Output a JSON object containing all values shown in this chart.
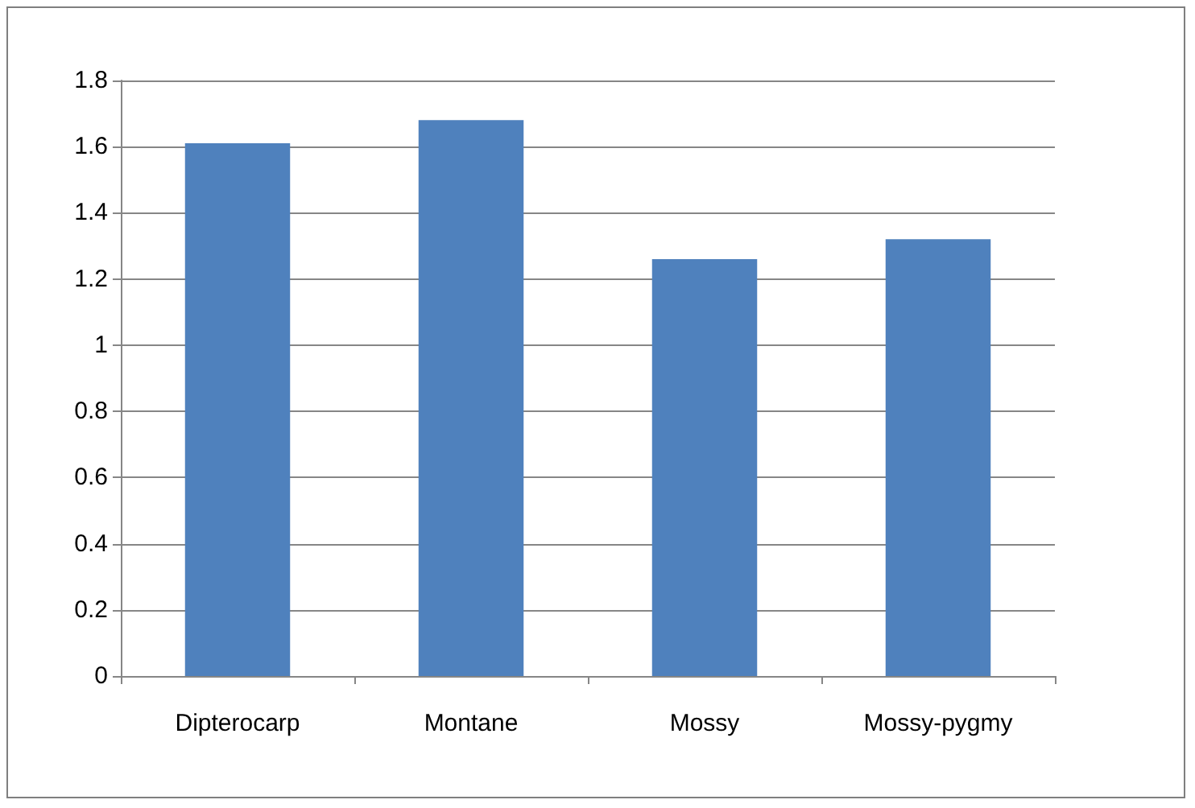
{
  "chart_data": {
    "type": "bar",
    "categories": [
      "Dipterocarp",
      "Montane",
      "Mossy",
      "Mossy-pygmy"
    ],
    "values": [
      1.61,
      1.68,
      1.26,
      1.32
    ],
    "color": "#4f81bd",
    "ylim": [
      0,
      1.8
    ],
    "yticks": [
      0,
      0.2,
      0.4,
      0.6,
      0.8,
      1,
      1.2,
      1.4,
      1.6,
      1.8
    ],
    "grid": "y"
  }
}
